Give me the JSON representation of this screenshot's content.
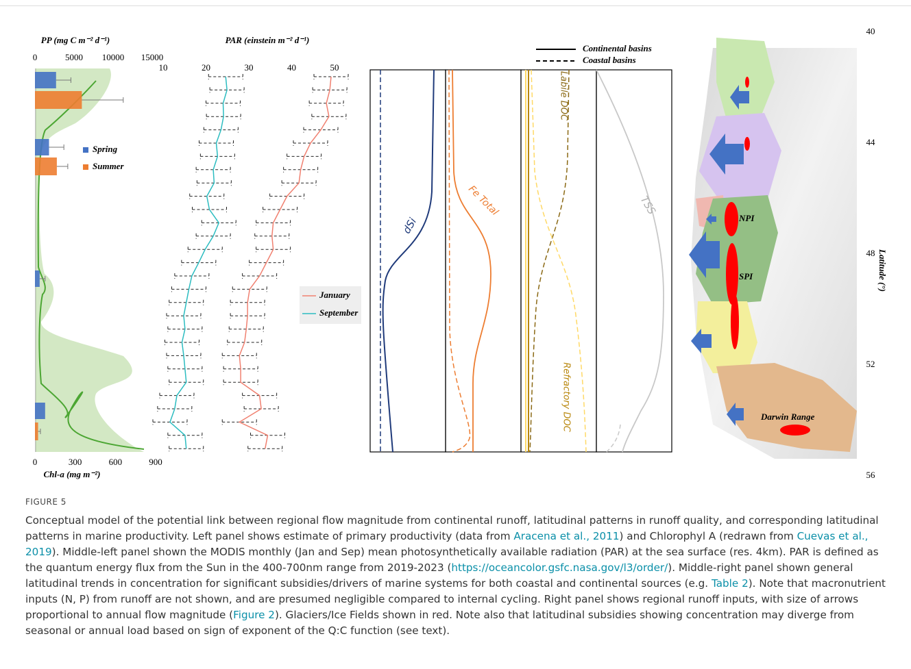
{
  "figure": {
    "pp_panel": {
      "title": "PP (mg C m⁻² d⁻¹)",
      "xticks": [
        0,
        5000,
        10000,
        15000
      ],
      "chl_label": "Chl-a (mg m⁻²)",
      "chl_ticks": [
        0,
        300,
        600,
        900
      ],
      "series": [
        {
          "name": "Spring",
          "color": "#4472c4",
          "values": [
            2700,
            1800,
            600,
            1300
          ],
          "errors": [
            1900,
            1900,
            700,
            null
          ]
        },
        {
          "name": "Summer",
          "color": "#ed7d31",
          "values": [
            6000,
            2800,
            null,
            400
          ],
          "errors": [
            5300,
            1400,
            null,
            300
          ]
        }
      ]
    },
    "par_panel": {
      "title": "PAR (einstein m⁻² d⁻¹)",
      "xticks": [
        10,
        20,
        30,
        40,
        50
      ],
      "series": [
        {
          "name": "January",
          "color": "#f08070",
          "error": 4,
          "values": [
            49.2,
            48.9,
            48.1,
            48.7,
            46.8,
            44.4,
            42.9,
            42.1,
            41.7,
            38.9,
            37.3,
            35.7,
            35.4,
            35.7,
            34.1,
            32.5,
            30.2,
            29.7,
            29.7,
            29.4,
            29.0,
            27.8,
            28.1,
            28.1,
            32.5,
            32.9,
            27.8,
            34.4,
            33.8
          ]
        },
        {
          "name": "September",
          "color": "#2bbcc0",
          "error": 4,
          "values": [
            24.6,
            24.9,
            24.0,
            24.1,
            23.5,
            22.4,
            22.7,
            21.7,
            21.9,
            20.2,
            20.8,
            23.0,
            21.7,
            19.8,
            18.3,
            16.7,
            16.0,
            15.4,
            14.8,
            15.1,
            14.4,
            14.8,
            15.1,
            15.4,
            13.2,
            12.7,
            11.6,
            15.1,
            15.4
          ]
        }
      ]
    },
    "trends_panel": {
      "legend": [
        "Continental basins",
        "Coastal basins"
      ],
      "labels": [
        "dSi",
        "Fe Total",
        "Labile DOC",
        "Refractory DOC",
        "TSS"
      ]
    },
    "map_panel": {
      "labels": [
        "NPI",
        "SPI",
        "Darwin Range"
      ],
      "latitude_label": "Latitude (°)",
      "latitude_ticks": [
        40,
        44,
        48,
        52,
        56
      ]
    },
    "caption": {
      "label": "FIGURE 5",
      "parts": [
        "Conceptual model of the potential link between regional flow magnitude from continental runoff, latitudinal patterns in runoff quality, and corresponding latitudinal patterns in marine productivity. Left panel shows estimate of primary productivity (data from ",
        "Aracena et al., 2011",
        ") and Chlorophyl A (redrawn from ",
        "Cuevas et al., 2019",
        "). Middle-left panel shown the MODIS monthly (Jan and Sep) mean photosynthetically available radiation (PAR) at the sea surface (res. 4km). PAR is defined as the quantum energy flux from the Sun in the 400-700nm range from 2019-2023 (",
        "https://oceancolor.gsfc.nasa.gov/l3/order/",
        "). Middle-right panel shown general latitudinal trends in concentration for significant subsidies/drivers of marine systems for both coastal and continental sources (e.g. ",
        "Table 2",
        "). Note that macronutrient inputs (N, P) from runoff are not shown, and are presumed negligible compared to internal cycling. Right panel shows regional runoff inputs, with size of arrows proportional to annual flow magnitude (",
        "Figure 2",
        "). Glaciers/Ice Fields shown in red. Note also that latitudinal subsidies showing concentration may diverge from seasonal or annual load based on sign of exponent of the Q:C function (see text)."
      ]
    }
  }
}
